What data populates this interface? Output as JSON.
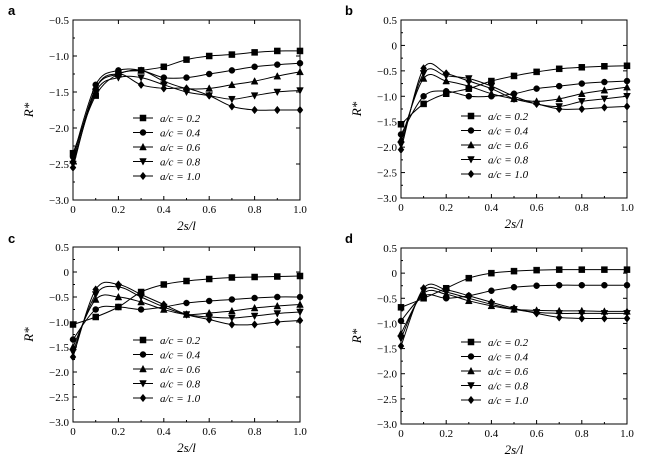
{
  "chart_data": [
    {
      "panel": "a",
      "type": "line",
      "xlabel": "2s/l",
      "ylabel": "R*",
      "xlim": [
        0,
        1.0
      ],
      "ylim": [
        -3.0,
        -0.5
      ],
      "xticks": [
        "0",
        "0.2",
        "0.4",
        "0.6",
        "0.8",
        "1.0"
      ],
      "yticks": [
        "-3.0",
        "-2.5",
        "-2.0",
        "-1.5",
        "-1.0",
        "-0.5"
      ],
      "legend_position": "bottom-center",
      "x": [
        0,
        0.1,
        0.2,
        0.3,
        0.4,
        0.5,
        0.6,
        0.7,
        0.8,
        0.9,
        1.0
      ],
      "series": [
        {
          "name": "a/c = 0.2",
          "marker": "square",
          "values": [
            -2.35,
            -1.55,
            -1.25,
            -1.2,
            -1.15,
            -1.05,
            -1.0,
            -0.98,
            -0.95,
            -0.93,
            -0.93
          ]
        },
        {
          "name": "a/c = 0.4",
          "marker": "circle",
          "values": [
            -2.4,
            -1.4,
            -1.2,
            -1.2,
            -1.3,
            -1.3,
            -1.25,
            -1.2,
            -1.15,
            -1.12,
            -1.1
          ]
        },
        {
          "name": "a/c = 0.6",
          "marker": "triangle-up",
          "values": [
            -2.45,
            -1.45,
            -1.25,
            -1.2,
            -1.35,
            -1.45,
            -1.45,
            -1.4,
            -1.35,
            -1.28,
            -1.22
          ]
        },
        {
          "name": "a/c = 0.8",
          "marker": "triangle-down",
          "values": [
            -2.5,
            -1.5,
            -1.3,
            -1.3,
            -1.4,
            -1.5,
            -1.55,
            -1.6,
            -1.55,
            -1.5,
            -1.48
          ]
        },
        {
          "name": "a/c = 1.0",
          "marker": "diamond",
          "values": [
            -2.55,
            -1.45,
            -1.25,
            -1.4,
            -1.45,
            -1.45,
            -1.55,
            -1.7,
            -1.75,
            -1.75,
            -1.75
          ]
        }
      ]
    },
    {
      "panel": "b",
      "type": "line",
      "xlabel": "2s/l",
      "ylabel": "R*",
      "xlim": [
        0,
        1.0
      ],
      "ylim": [
        -3.0,
        0.5
      ],
      "xticks": [
        "0",
        "0.2",
        "0.4",
        "0.6",
        "0.8",
        "1.0"
      ],
      "yticks": [
        "-3.0",
        "-2.5",
        "-2.0",
        "-1.5",
        "-1.0",
        "-0.5",
        "0",
        "0.5"
      ],
      "legend_position": "bottom-center",
      "x": [
        0,
        0.1,
        0.2,
        0.3,
        0.4,
        0.5,
        0.6,
        0.7,
        0.8,
        0.9,
        1.0
      ],
      "series": [
        {
          "name": "a/c = 0.2",
          "marker": "square",
          "values": [
            -1.55,
            -1.15,
            -0.95,
            -0.85,
            -0.7,
            -0.6,
            -0.52,
            -0.46,
            -0.43,
            -0.41,
            -0.4
          ]
        },
        {
          "name": "a/c = 0.4",
          "marker": "circle",
          "values": [
            -1.75,
            -1.0,
            -0.9,
            -1.0,
            -1.0,
            -0.95,
            -0.85,
            -0.8,
            -0.75,
            -0.72,
            -0.7
          ]
        },
        {
          "name": "a/c = 0.6",
          "marker": "triangle-up",
          "values": [
            -1.85,
            -0.65,
            -0.7,
            -0.8,
            -0.95,
            -1.05,
            -1.1,
            -1.05,
            -0.95,
            -0.88,
            -0.82
          ]
        },
        {
          "name": "a/c = 0.8",
          "marker": "triangle-down",
          "values": [
            -1.95,
            -0.55,
            -0.6,
            -0.65,
            -0.8,
            -1.0,
            -1.15,
            -1.2,
            -1.1,
            -1.05,
            -1.0
          ]
        },
        {
          "name": "a/c = 1.0",
          "marker": "diamond",
          "values": [
            -2.05,
            -0.45,
            -0.55,
            -0.7,
            -0.85,
            -1.05,
            -1.15,
            -1.25,
            -1.25,
            -1.22,
            -1.2
          ]
        }
      ]
    },
    {
      "panel": "c",
      "type": "line",
      "xlabel": "2s/l",
      "ylabel": "R*",
      "xlim": [
        0,
        1.0
      ],
      "ylim": [
        -3.0,
        0.5
      ],
      "xticks": [
        "0",
        "0.2",
        "0.4",
        "0.6",
        "0.8",
        "1.0"
      ],
      "yticks": [
        "-3.0",
        "-2.5",
        "-2.0",
        "-1.5",
        "-1.0",
        "-0.5",
        "0",
        "0.5"
      ],
      "legend_position": "bottom-center",
      "x": [
        0,
        0.1,
        0.2,
        0.3,
        0.4,
        0.5,
        0.6,
        0.7,
        0.8,
        0.9,
        1.0
      ],
      "series": [
        {
          "name": "a/c = 0.2",
          "marker": "square",
          "values": [
            -1.05,
            -0.9,
            -0.7,
            -0.4,
            -0.25,
            -0.18,
            -0.14,
            -0.11,
            -0.1,
            -0.09,
            -0.08
          ]
        },
        {
          "name": "a/c = 0.4",
          "marker": "circle",
          "values": [
            -1.35,
            -0.75,
            -0.7,
            -0.75,
            -0.7,
            -0.62,
            -0.58,
            -0.55,
            -0.52,
            -0.5,
            -0.5
          ]
        },
        {
          "name": "a/c = 0.6",
          "marker": "triangle-up",
          "values": [
            -1.5,
            -0.55,
            -0.5,
            -0.6,
            -0.75,
            -0.85,
            -0.82,
            -0.78,
            -0.72,
            -0.68,
            -0.65
          ]
        },
        {
          "name": "a/c = 0.8",
          "marker": "triangle-down",
          "values": [
            -1.6,
            -0.45,
            -0.3,
            -0.5,
            -0.7,
            -0.85,
            -0.9,
            -0.92,
            -0.88,
            -0.83,
            -0.8
          ]
        },
        {
          "name": "a/c = 1.0",
          "marker": "diamond",
          "values": [
            -1.7,
            -0.35,
            -0.25,
            -0.45,
            -0.65,
            -0.85,
            -0.95,
            -1.05,
            -1.05,
            -1.0,
            -0.97
          ]
        }
      ]
    },
    {
      "panel": "d",
      "type": "line",
      "xlabel": "2s/l",
      "ylabel": "R*",
      "xlim": [
        0,
        1.0
      ],
      "ylim": [
        -3.0,
        0.5
      ],
      "xticks": [
        "0",
        "0.2",
        "0.4",
        "0.6",
        "0.8",
        "1.0"
      ],
      "yticks": [
        "-3.0",
        "-2.5",
        "-2.0",
        "-1.5",
        "-1.0",
        "-0.5",
        "0",
        "0.5"
      ],
      "legend_position": "bottom-center",
      "x": [
        0,
        0.1,
        0.2,
        0.3,
        0.4,
        0.5,
        0.6,
        0.7,
        0.8,
        0.9,
        1.0
      ],
      "series": [
        {
          "name": "a/c = 0.2",
          "marker": "square",
          "values": [
            -0.68,
            -0.5,
            -0.3,
            -0.1,
            0.0,
            0.04,
            0.06,
            0.07,
            0.07,
            0.07,
            0.07
          ]
        },
        {
          "name": "a/c = 0.4",
          "marker": "circle",
          "values": [
            -0.95,
            -0.45,
            -0.5,
            -0.45,
            -0.35,
            -0.28,
            -0.25,
            -0.24,
            -0.24,
            -0.24,
            -0.24
          ]
        },
        {
          "name": "a/c = 0.6",
          "marker": "triangle-up",
          "values": [
            -1.2,
            -0.4,
            -0.42,
            -0.55,
            -0.65,
            -0.72,
            -0.74,
            -0.75,
            -0.75,
            -0.76,
            -0.76
          ]
        },
        {
          "name": "a/c = 0.8",
          "marker": "triangle-down",
          "values": [
            -1.3,
            -0.35,
            -0.38,
            -0.5,
            -0.62,
            -0.72,
            -0.78,
            -0.8,
            -0.8,
            -0.8,
            -0.8
          ]
        },
        {
          "name": "a/c = 1.0",
          "marker": "diamond",
          "values": [
            -1.45,
            -0.3,
            -0.33,
            -0.45,
            -0.58,
            -0.7,
            -0.8,
            -0.88,
            -0.9,
            -0.9,
            -0.9
          ]
        }
      ]
    }
  ]
}
